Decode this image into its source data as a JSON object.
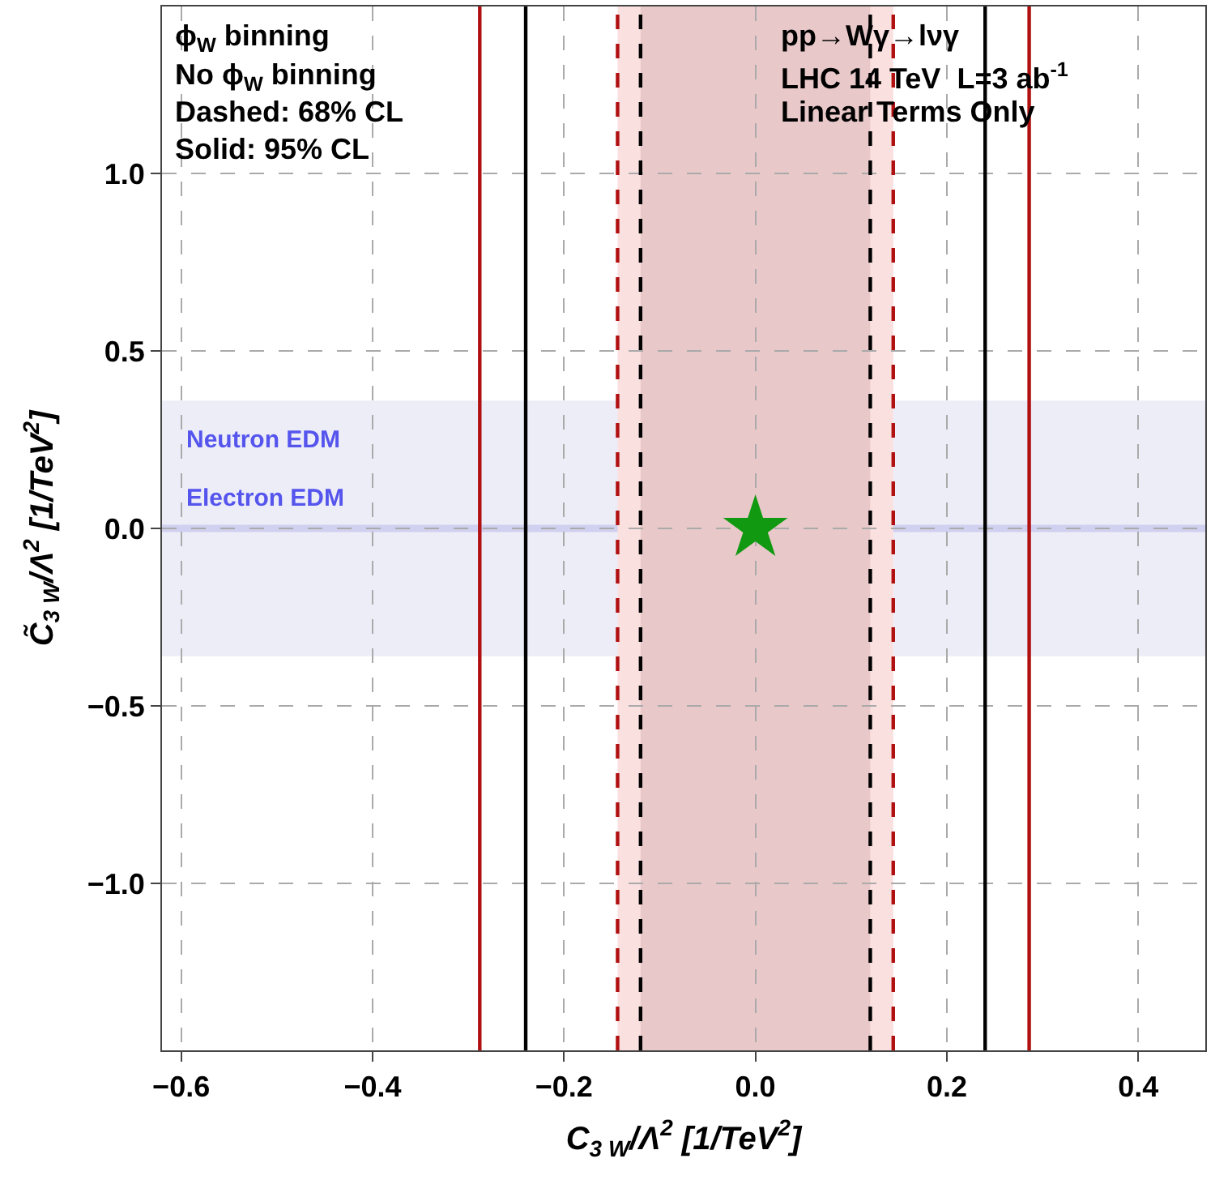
{
  "chart_data": {
    "type": "scatter",
    "xlabel": "C$_{3 W}$/Λ$^{2}$ [1/TeV$^{2}$]",
    "ylabel": "C̃$_{3 W}$/Λ$^{2}$ [1/TeV$^{2}$]",
    "x": [
      0
    ],
    "series": [
      {
        "color": "#119911",
        "values": [
          0
        ],
        "marker": "star"
      }
    ],
    "xlim": [
      -0.62,
      0.47
    ],
    "ylim": [
      -1.47,
      1.47
    ],
    "xticks": [
      {
        "value": -0.6,
        "label": "−0.6"
      },
      {
        "value": -0.4,
        "label": "−0.4"
      },
      {
        "value": -0.2,
        "label": "−0.2"
      },
      {
        "value": 0,
        "label": "0.0"
      },
      {
        "value": 0.2,
        "label": "0.2"
      },
      {
        "value": 0.4,
        "label": "0.4"
      }
    ],
    "yticks": [
      {
        "value": -1,
        "label": "−1.0"
      },
      {
        "value": -0.5,
        "label": "−0.5"
      },
      {
        "value": 0,
        "label": "0.0"
      },
      {
        "value": 0.5,
        "label": "0.5"
      },
      {
        "value": 1,
        "label": "1.0"
      }
    ],
    "grid": true,
    "bands": [
      {
        "axis": "y",
        "from": -0.36,
        "to": 0.36,
        "label": "Neutron EDM",
        "color": "#e8e8f6"
      },
      {
        "axis": "y",
        "from": -0.01,
        "to": 0.01,
        "label": "Electron EDM",
        "color": "#c8c8ee"
      },
      {
        "axis": "x",
        "from": -0.144,
        "to": 0.144,
        "color": "#fbe0e0"
      },
      {
        "axis": "x",
        "from": -0.12,
        "to": 0.12,
        "color": "#e8c8c8"
      }
    ],
    "ref_lines": [
      {
        "axis": "x",
        "value": -0.288,
        "color": "#b01010",
        "line_style": "solid"
      },
      {
        "axis": "x",
        "value": 0.286,
        "color": "#b01010",
        "line_style": "solid"
      },
      {
        "axis": "x",
        "value": -0.24,
        "color": "#000000",
        "line_style": "solid"
      },
      {
        "axis": "x",
        "value": 0.24,
        "color": "#000000",
        "line_style": "solid"
      },
      {
        "axis": "x",
        "value": -0.144,
        "color": "#b01010",
        "line_style": "dashed"
      },
      {
        "axis": "x",
        "value": 0.144,
        "color": "#b01010",
        "line_style": "dashed"
      },
      {
        "axis": "x",
        "value": -0.12,
        "color": "#000000",
        "line_style": "dashed"
      },
      {
        "axis": "x",
        "value": 0.12,
        "color": "#000000",
        "line_style": "dashed"
      }
    ],
    "annotations": [
      "ϕ$_{W}$ binning",
      "No ϕ$_{W}$ binning",
      "Dashed: 68% CL",
      "Solid: 95% CL",
      "pp→Wγ→lνγ",
      "LHC 14 TeV  L=3 ab$^{-1}$",
      "Linear Terms Only"
    ]
  }
}
